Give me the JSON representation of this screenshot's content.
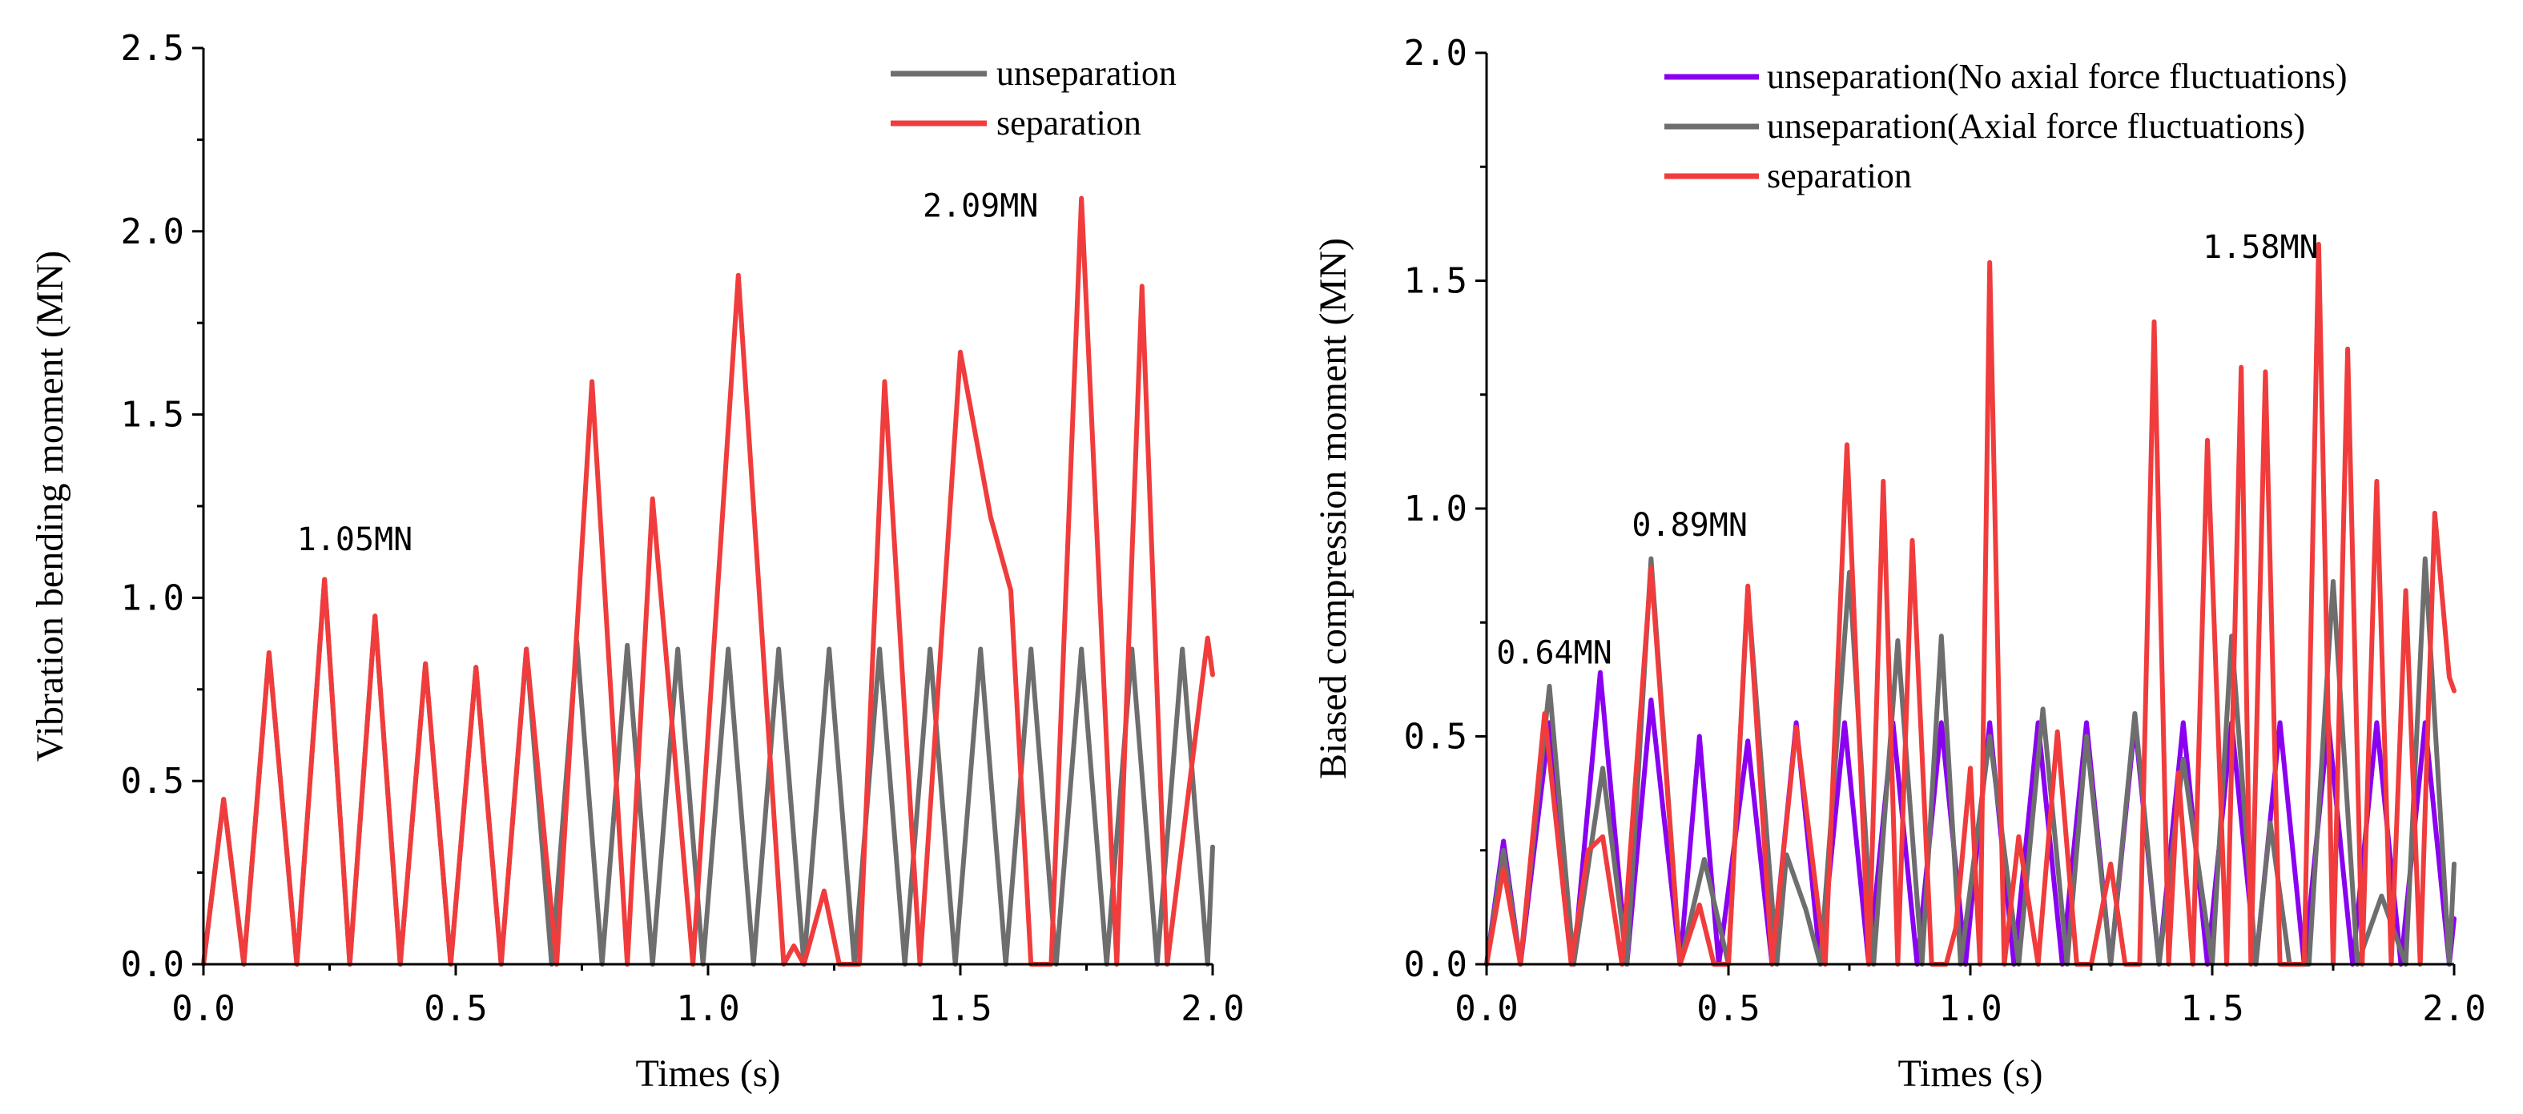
{
  "chart_data": [
    {
      "type": "line",
      "xlabel": "Times (s)",
      "ylabel": "Vibration bending moment (MN)",
      "xlim": [
        0,
        2.0
      ],
      "ylim": [
        0,
        2.5
      ],
      "xticks": [
        "0.0",
        "0.5",
        "1.0",
        "1.5",
        "2.0"
      ],
      "yticks": [
        "0.0",
        "0.5",
        "1.0",
        "1.5",
        "2.0",
        "2.5"
      ],
      "legend_position": "top-right",
      "series": [
        {
          "name": "unseparation",
          "color": "#6e6e6e",
          "x": [
            0.0,
            0.04,
            0.08,
            0.13,
            0.185,
            0.24,
            0.29,
            0.34,
            0.39,
            0.44,
            0.49,
            0.54,
            0.59,
            0.64,
            0.69,
            0.74,
            0.79,
            0.84,
            0.89,
            0.94,
            0.99,
            1.04,
            1.09,
            1.14,
            1.19,
            1.24,
            1.29,
            1.34,
            1.39,
            1.44,
            1.49,
            1.54,
            1.59,
            1.64,
            1.69,
            1.74,
            1.79,
            1.84,
            1.89,
            1.94,
            1.99,
            2.0
          ],
          "values": [
            0.0,
            0.45,
            0.0,
            0.85,
            0.0,
            1.05,
            0.0,
            0.95,
            0.0,
            0.82,
            0.0,
            0.81,
            0.0,
            0.86,
            0.0,
            0.88,
            0.0,
            0.87,
            0.0,
            0.86,
            0.0,
            0.86,
            0.0,
            0.86,
            0.0,
            0.86,
            0.0,
            0.86,
            0.0,
            0.86,
            0.0,
            0.86,
            0.0,
            0.86,
            0.0,
            0.86,
            0.0,
            0.86,
            0.0,
            0.86,
            0.0,
            0.32
          ]
        },
        {
          "name": "separation",
          "color": "#f03c3c",
          "x": [
            0.0,
            0.04,
            0.08,
            0.13,
            0.185,
            0.24,
            0.29,
            0.34,
            0.39,
            0.44,
            0.49,
            0.54,
            0.59,
            0.64,
            0.7,
            0.77,
            0.84,
            0.89,
            0.97,
            1.06,
            1.15,
            1.17,
            1.19,
            1.23,
            1.26,
            1.3,
            1.35,
            1.42,
            1.5,
            1.56,
            1.6,
            1.64,
            1.68,
            1.74,
            1.81,
            1.86,
            1.91,
            1.99,
            2.0
          ],
          "values": [
            0.0,
            0.45,
            0.0,
            0.85,
            0.0,
            1.05,
            0.0,
            0.95,
            0.0,
            0.82,
            0.0,
            0.81,
            0.0,
            0.86,
            0.0,
            1.59,
            0.0,
            1.27,
            0.0,
            1.88,
            0.0,
            0.05,
            0.0,
            0.2,
            0.0,
            0.0,
            1.59,
            0.0,
            1.67,
            1.22,
            1.02,
            0.0,
            0.0,
            2.09,
            0.0,
            1.85,
            0.0,
            0.89,
            0.79
          ]
        }
      ],
      "annotations": [
        {
          "text": "1.05MN",
          "x": 0.3,
          "y": 1.13
        },
        {
          "text": "2.09MN",
          "x": 1.54,
          "y": 2.04
        }
      ]
    },
    {
      "type": "line",
      "xlabel": "Times (s)",
      "ylabel": "Biased compression moment (MN)",
      "xlim": [
        0,
        2.0
      ],
      "ylim": [
        0,
        2.0
      ],
      "xticks": [
        "0.0",
        "0.5",
        "1.0",
        "1.5",
        "2.0"
      ],
      "yticks": [
        "0.0",
        "0.5",
        "1.0",
        "1.5",
        "2.0"
      ],
      "legend_position": "top-left",
      "series": [
        {
          "name": "unseparation(No axial force fluctuations)",
          "color": "#8a00f0",
          "x": [
            0.0,
            0.035,
            0.07,
            0.13,
            0.18,
            0.235,
            0.29,
            0.34,
            0.4,
            0.44,
            0.48,
            0.54,
            0.59,
            0.64,
            0.69,
            0.74,
            0.79,
            0.84,
            0.89,
            0.94,
            0.99,
            1.04,
            1.09,
            1.14,
            1.19,
            1.24,
            1.29,
            1.34,
            1.39,
            1.44,
            1.49,
            1.54,
            1.59,
            1.64,
            1.69,
            1.74,
            1.79,
            1.84,
            1.89,
            1.94,
            1.99,
            2.0
          ],
          "values": [
            0.0,
            0.27,
            0.0,
            0.53,
            0.0,
            0.64,
            0.0,
            0.58,
            0.0,
            0.5,
            0.0,
            0.49,
            0.0,
            0.53,
            0.0,
            0.53,
            0.0,
            0.53,
            0.0,
            0.53,
            0.0,
            0.53,
            0.0,
            0.53,
            0.0,
            0.53,
            0.0,
            0.53,
            0.0,
            0.53,
            0.0,
            0.53,
            0.0,
            0.53,
            0.0,
            0.53,
            0.0,
            0.53,
            0.0,
            0.53,
            0.0,
            0.1
          ]
        },
        {
          "name": "unseparation(Axial force fluctuations)",
          "color": "#6e6e6e",
          "x": [
            0.0,
            0.035,
            0.07,
            0.13,
            0.18,
            0.24,
            0.29,
            0.34,
            0.4,
            0.45,
            0.5,
            0.54,
            0.6,
            0.62,
            0.66,
            0.69,
            0.75,
            0.8,
            0.85,
            0.9,
            0.94,
            0.98,
            1.04,
            1.1,
            1.15,
            1.2,
            1.24,
            1.29,
            1.34,
            1.39,
            1.44,
            1.5,
            1.54,
            1.59,
            1.62,
            1.66,
            1.7,
            1.75,
            1.8,
            1.85,
            1.9,
            1.94,
            1.99,
            2.0
          ],
          "values": [
            0.0,
            0.25,
            0.0,
            0.61,
            0.0,
            0.43,
            0.0,
            0.89,
            0.0,
            0.23,
            0.0,
            0.82,
            0.0,
            0.24,
            0.12,
            0.0,
            0.86,
            0.0,
            0.71,
            0.0,
            0.72,
            0.0,
            0.5,
            0.0,
            0.56,
            0.0,
            0.5,
            0.0,
            0.55,
            0.0,
            0.45,
            0.0,
            0.72,
            0.0,
            0.31,
            0.0,
            0.0,
            0.84,
            0.0,
            0.15,
            0.0,
            0.89,
            0.0,
            0.22
          ]
        },
        {
          "name": "separation",
          "color": "#f03c3c",
          "x": [
            0.0,
            0.035,
            0.07,
            0.12,
            0.175,
            0.21,
            0.24,
            0.28,
            0.34,
            0.4,
            0.44,
            0.47,
            0.5,
            0.54,
            0.59,
            0.64,
            0.7,
            0.745,
            0.79,
            0.82,
            0.85,
            0.88,
            0.92,
            0.95,
            0.97,
            1.0,
            1.02,
            1.04,
            1.07,
            1.1,
            1.14,
            1.18,
            1.22,
            1.25,
            1.29,
            1.32,
            1.35,
            1.38,
            1.41,
            1.43,
            1.46,
            1.49,
            1.53,
            1.56,
            1.58,
            1.61,
            1.64,
            1.66,
            1.69,
            1.72,
            1.75,
            1.78,
            1.81,
            1.84,
            1.87,
            1.9,
            1.93,
            1.96,
            1.99,
            2.0
          ],
          "values": [
            0.0,
            0.21,
            0.0,
            0.55,
            0.0,
            0.25,
            0.28,
            0.0,
            0.87,
            0.0,
            0.13,
            0.0,
            0.0,
            0.83,
            0.0,
            0.52,
            0.0,
            1.14,
            0.0,
            1.06,
            0.0,
            0.93,
            0.0,
            0.0,
            0.08,
            0.43,
            0.0,
            1.54,
            0.0,
            0.28,
            0.0,
            0.51,
            0.0,
            0.0,
            0.22,
            0.0,
            0.0,
            1.41,
            0.0,
            0.42,
            0.0,
            1.15,
            0.0,
            1.31,
            0.0,
            1.3,
            0.0,
            0.0,
            0.0,
            1.58,
            0.0,
            1.35,
            0.0,
            1.06,
            0.0,
            0.82,
            0.0,
            0.99,
            0.63,
            0.6
          ]
        }
      ],
      "annotations": [
        {
          "text": "0.64MN",
          "x": 0.14,
          "y": 0.66
        },
        {
          "text": "0.89MN",
          "x": 0.42,
          "y": 0.94
        },
        {
          "text": "1.58MN",
          "x": 1.6,
          "y": 1.55
        }
      ]
    }
  ]
}
